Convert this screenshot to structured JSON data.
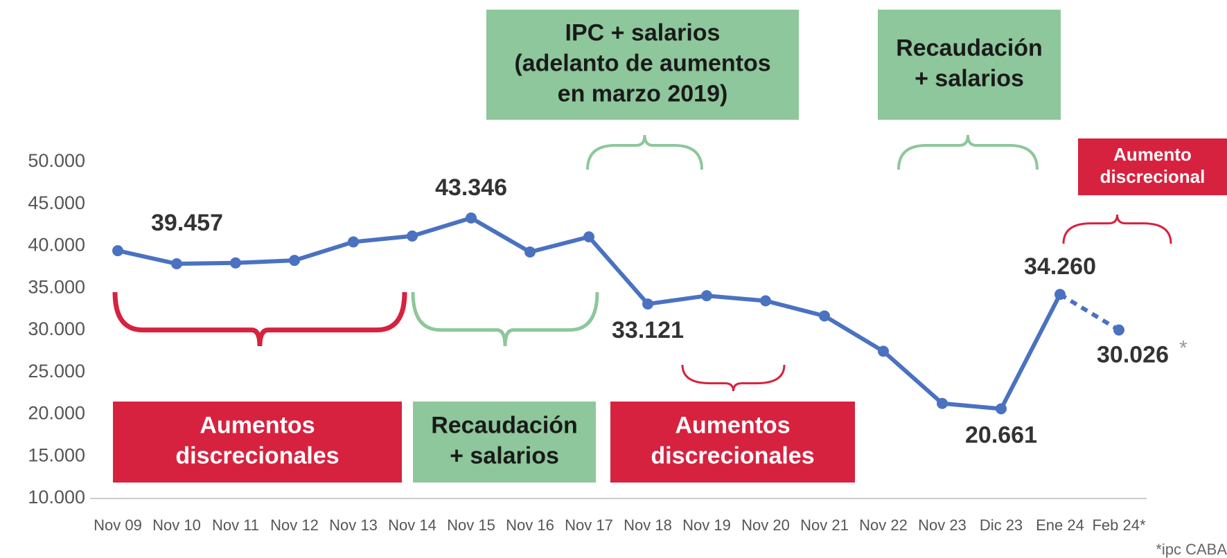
{
  "chart_data": {
    "type": "line",
    "categories": [
      "Nov 09",
      "Nov 10",
      "Nov 11",
      "Nov 12",
      "Nov 13",
      "Nov 14",
      "Nov 15",
      "Nov 16",
      "Nov 17",
      "Nov 18",
      "Nov 19",
      "Nov 20",
      "Nov 21",
      "Nov 22",
      "Nov 23",
      "Dic 23",
      "Ene 24",
      "Feb 24*"
    ],
    "series": [
      {
        "color": "#4a72c0",
        "values": [
          39457,
          37900,
          38000,
          38300,
          40500,
          41200,
          43346,
          39300,
          41100,
          33121,
          34100,
          33500,
          31700,
          27500,
          21300,
          20661,
          34260,
          30026
        ],
        "value_labels": [
          "39.457",
          null,
          null,
          null,
          null,
          null,
          "43.346",
          null,
          null,
          "33.121",
          null,
          null,
          null,
          null,
          null,
          "20.661",
          "34.260",
          "30.026"
        ]
      }
    ],
    "dashed_last_segment": true,
    "ylim": [
      10000,
      50000
    ],
    "yticks": [
      {
        "value": 10000,
        "label": "10.000"
      },
      {
        "value": 15000,
        "label": "15.000"
      },
      {
        "value": 20000,
        "label": "20.000"
      },
      {
        "value": 25000,
        "label": "25.000"
      },
      {
        "value": 30000,
        "label": "30.000"
      },
      {
        "value": 35000,
        "label": "35.000"
      },
      {
        "value": 40000,
        "label": "40.000"
      },
      {
        "value": 45000,
        "label": "45.000"
      },
      {
        "value": 50000,
        "label": "50.000"
      }
    ],
    "grid": false,
    "annotations": [
      {
        "lines": [
          "IPC + salarios",
          "(adelanto de aumentos",
          "en marzo 2019)"
        ],
        "color": "#8dc79b"
      },
      {
        "lines": [
          "Recaudación",
          "+ salarios"
        ],
        "color": "#8dc79b"
      },
      {
        "lines": [
          "Aumento",
          "discrecional"
        ],
        "color": "#d7223f"
      },
      {
        "lines": [
          "Aumentos",
          "discrecionales"
        ],
        "color": "#d7223f"
      },
      {
        "lines": [
          "Recaudación",
          "+ salarios"
        ],
        "color": "#8dc79b"
      },
      {
        "lines": [
          "Aumentos",
          "discrecionales"
        ],
        "color": "#d7223f"
      }
    ],
    "label_footnote_mark": "*",
    "footnote": "*ipc CABA"
  }
}
